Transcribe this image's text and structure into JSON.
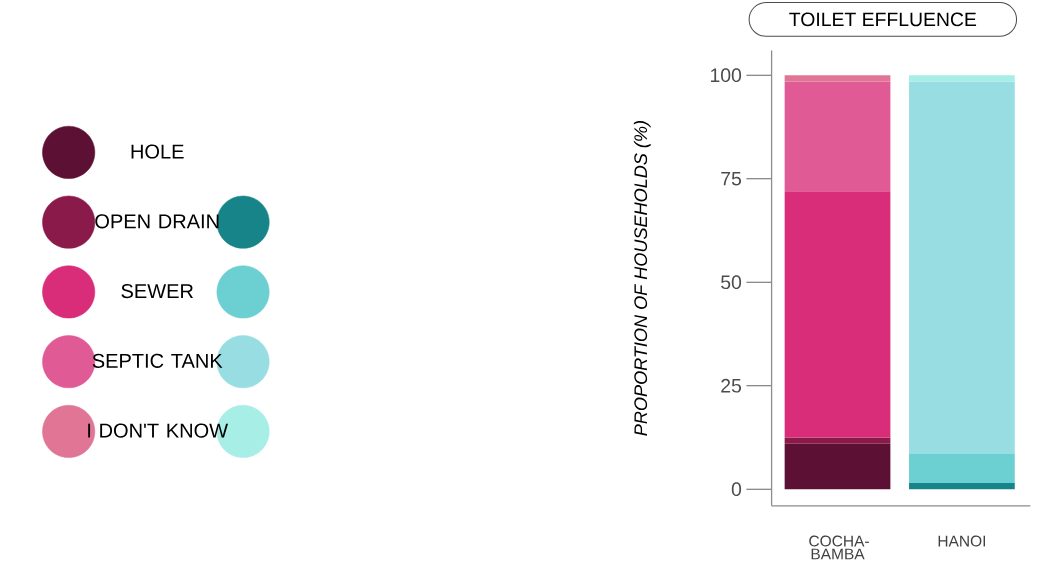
{
  "chart_data": {
    "type": "bar",
    "stacked": true,
    "title": "TOILET EFFLUENCE",
    "ylabel": "PROPORTION OF HOUSEHOLDS (%)",
    "categories": [
      "COCHA-BAMBA",
      "HANOI"
    ],
    "ylim": [
      -4,
      106
    ],
    "yticks": [
      0,
      25,
      50,
      75,
      100
    ],
    "legend": "left",
    "series": [
      {
        "name": "HOLE",
        "colors": [
          "#5c1033",
          null
        ],
        "values": [
          11,
          0
        ]
      },
      {
        "name": "OPEN DRAIN",
        "colors": [
          "#8a1a4a",
          "#17848a"
        ],
        "values": [
          1.5,
          1.5
        ]
      },
      {
        "name": "SEWER",
        "colors": [
          "#d92d7a",
          "#6ccfd2"
        ],
        "values": [
          59.5,
          7
        ]
      },
      {
        "name": "SEPTIC TANK",
        "colors": [
          "#e05a96",
          "#98dde2"
        ],
        "values": [
          26.5,
          90
        ]
      },
      {
        "name": "I DON'T KNOW",
        "colors": [
          "#e07596",
          "#a6eee6"
        ],
        "values": [
          1.5,
          1.5
        ]
      }
    ]
  }
}
